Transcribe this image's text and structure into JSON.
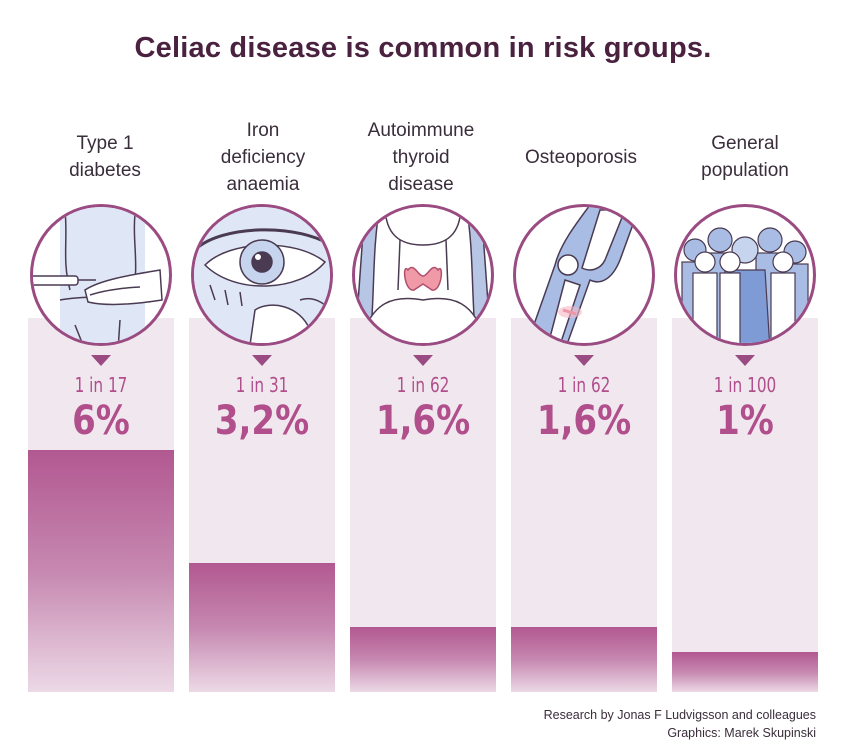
{
  "title": "Celiac disease is common in risk groups.",
  "chart_data": {
    "type": "bar",
    "categories": [
      [
        "Type 1",
        "diabetes"
      ],
      [
        "Iron",
        "deficiency",
        "anaemia"
      ],
      [
        "Autoimmune",
        "thyroid",
        "disease"
      ],
      [
        "Osteoporosis"
      ],
      [
        "General",
        "population"
      ]
    ],
    "ratio_labels": [
      "1 in 17",
      "1 in 31",
      "1 in 62",
      "1 in 62",
      "1 in 100"
    ],
    "value_labels": [
      "6%",
      "3,2%",
      "1,6%",
      "1,6%",
      "1%"
    ],
    "values": [
      6,
      3.2,
      1.6,
      1.6,
      1
    ],
    "ylim": [
      0,
      10
    ],
    "colors": {
      "bar_top": "#b25891",
      "bar_bottom": "#ecd9e6",
      "column_bg": "#f1e8ef",
      "ring": "#9a4b82",
      "text": "#b04f8c"
    },
    "icons": [
      "insulin-injection-icon",
      "eye-icon",
      "thyroid-icon",
      "knee-fracture-icon",
      "crowd-icon"
    ]
  },
  "credits": {
    "research": "Research by Jonas F Ludvigsson and colleagues",
    "graphics": "Graphics: Marek Skupinski"
  }
}
